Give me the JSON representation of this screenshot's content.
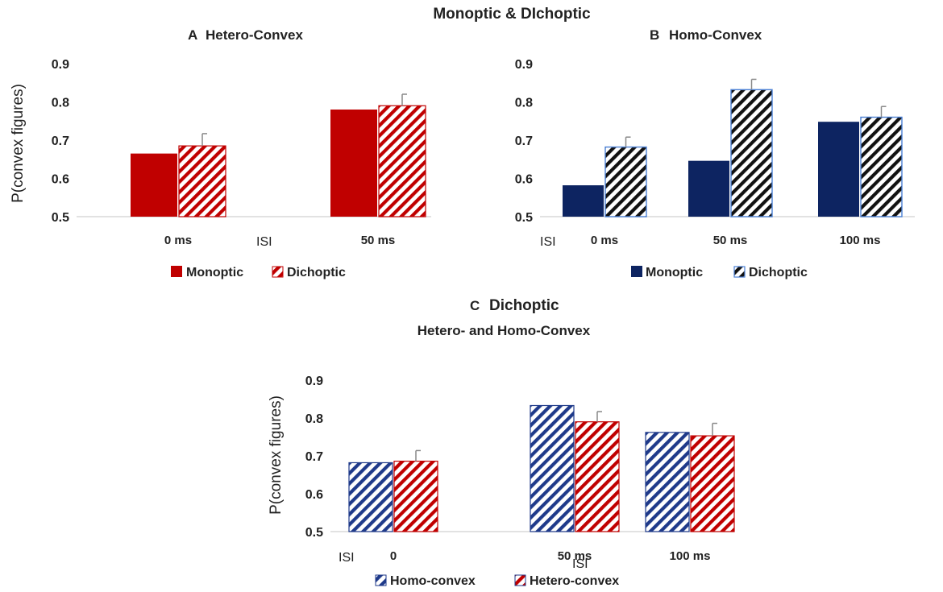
{
  "figure_title": "Monoptic & DIchoptic",
  "colors": {
    "red": "#c00000",
    "navy": "#0d2461",
    "hatch_blue": "#1f3a8a",
    "outline_blue": "#4a7fd4",
    "axis": "#d9d9d9",
    "error": "#888888"
  },
  "chart_data": [
    {
      "id": "A",
      "type": "bar",
      "panel_letter": "A",
      "title": "Hetero-Convex",
      "ylabel": "P(convex figures)",
      "ylim": [
        0.5,
        0.9
      ],
      "yticks": [
        "0.9",
        "0.8",
        "0.7",
        "0.6",
        "0.5"
      ],
      "isi_label": "ISI",
      "categories": [
        "0 ms",
        "50 ms"
      ],
      "series": [
        {
          "name": "Monoptic",
          "values": [
            0.665,
            0.78
          ],
          "errors": [
            0,
            0
          ],
          "style": "solid-red"
        },
        {
          "name": "Dichoptic",
          "values": [
            0.685,
            0.79
          ],
          "errors": [
            0.032,
            0.03
          ],
          "style": "hatch-red"
        }
      ]
    },
    {
      "id": "B",
      "type": "bar",
      "panel_letter": "B",
      "title": "Homo-Convex",
      "ylim": [
        0.5,
        0.9
      ],
      "yticks": [
        "0.9",
        "0.8",
        "0.7",
        "0.6",
        "0.5"
      ],
      "isi_label": "ISI",
      "categories": [
        "0 ms",
        "50 ms",
        "100 ms"
      ],
      "series": [
        {
          "name": "Monoptic",
          "values": [
            0.582,
            0.646,
            0.748
          ],
          "errors": [
            0,
            0,
            0
          ],
          "style": "solid-navy"
        },
        {
          "name": "Dichoptic",
          "values": [
            0.682,
            0.832,
            0.76
          ],
          "errors": [
            0.026,
            0.027,
            0.028
          ],
          "style": "hatch-black"
        }
      ]
    },
    {
      "id": "C",
      "type": "bar",
      "panel_letter": "C",
      "title": "Dichoptic",
      "subtitle": "Hetero- and Homo-Convex",
      "ylabel": "P(convex figures)",
      "ylim": [
        0.5,
        0.9
      ],
      "yticks": [
        "0.9",
        "0.8",
        "0.7",
        "0.6",
        "0.5"
      ],
      "isi_label_left": "ISI",
      "isi_label_mid": "ISI",
      "categories": [
        "0",
        "50 ms",
        "100 ms"
      ],
      "series": [
        {
          "name": "Homo-convex",
          "values": [
            0.682,
            0.833,
            0.762
          ],
          "errors": [
            0,
            0,
            0
          ],
          "style": "hatch-blue"
        },
        {
          "name": "Hetero-convex",
          "values": [
            0.686,
            0.79,
            0.753
          ],
          "errors": [
            0.028,
            0.027,
            0.033
          ],
          "style": "hatch-red"
        }
      ]
    }
  ]
}
